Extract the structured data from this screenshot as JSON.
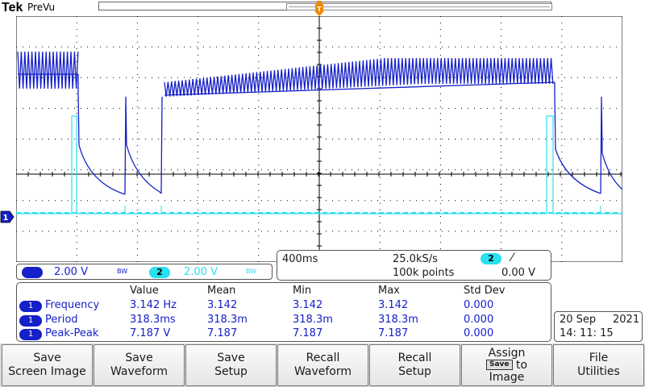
{
  "header": {
    "brand": "Tek",
    "mode": "PreVu"
  },
  "colors": {
    "ch1": "#1520c8",
    "ch2": "#28e0ee",
    "grid": "#000000"
  },
  "icons": {
    "trigger_position": "trigger-position-marker",
    "ch1_ground": "ch1-ground-marker"
  },
  "vertical": {
    "ch1": {
      "label": "1",
      "scale": "2.00 V",
      "bw": "BW"
    },
    "ch2": {
      "label": "2",
      "scale": "2.00 V",
      "bw": "BW"
    }
  },
  "timebase": {
    "scale": "400ms",
    "sample_rate": "25.0kS/s",
    "record_length": "100k points",
    "trigger_source": "2",
    "trigger_slope": "⁄",
    "trigger_level": "0.00 V"
  },
  "measurements": {
    "headers": [
      "Value",
      "Mean",
      "Min",
      "Max",
      "Std Dev"
    ],
    "rows": [
      {
        "channel": "1",
        "name": "Frequency",
        "value": "3.142 Hz",
        "mean": "3.142",
        "min": "3.142",
        "max": "3.142",
        "std": "0.000"
      },
      {
        "channel": "1",
        "name": "Period",
        "value": "318.3ms",
        "mean": "318.3m",
        "min": "318.3m",
        "max": "318.3m",
        "std": "0.000"
      },
      {
        "channel": "1",
        "name": "Peak-Peak",
        "value": "7.187 V",
        "mean": "7.187",
        "min": "7.187",
        "max": "7.187",
        "std": "0.000"
      }
    ]
  },
  "datetime": {
    "day_month": "20 Sep",
    "year": "2021",
    "time": "14: 11: 15"
  },
  "softkeys": [
    {
      "line1": "Save",
      "line2": "Screen Image"
    },
    {
      "line1": "Save",
      "line2": "Waveform"
    },
    {
      "line1": "Save",
      "line2": "Setup"
    },
    {
      "line1": "Recall",
      "line2": "Waveform"
    },
    {
      "line1": "Recall",
      "line2": "Setup"
    },
    {
      "line1": "Assign",
      "chip": "Save",
      "chip_suffix": "to",
      "line2": "Image"
    },
    {
      "line1": "File",
      "line2": "Utilities"
    }
  ]
}
